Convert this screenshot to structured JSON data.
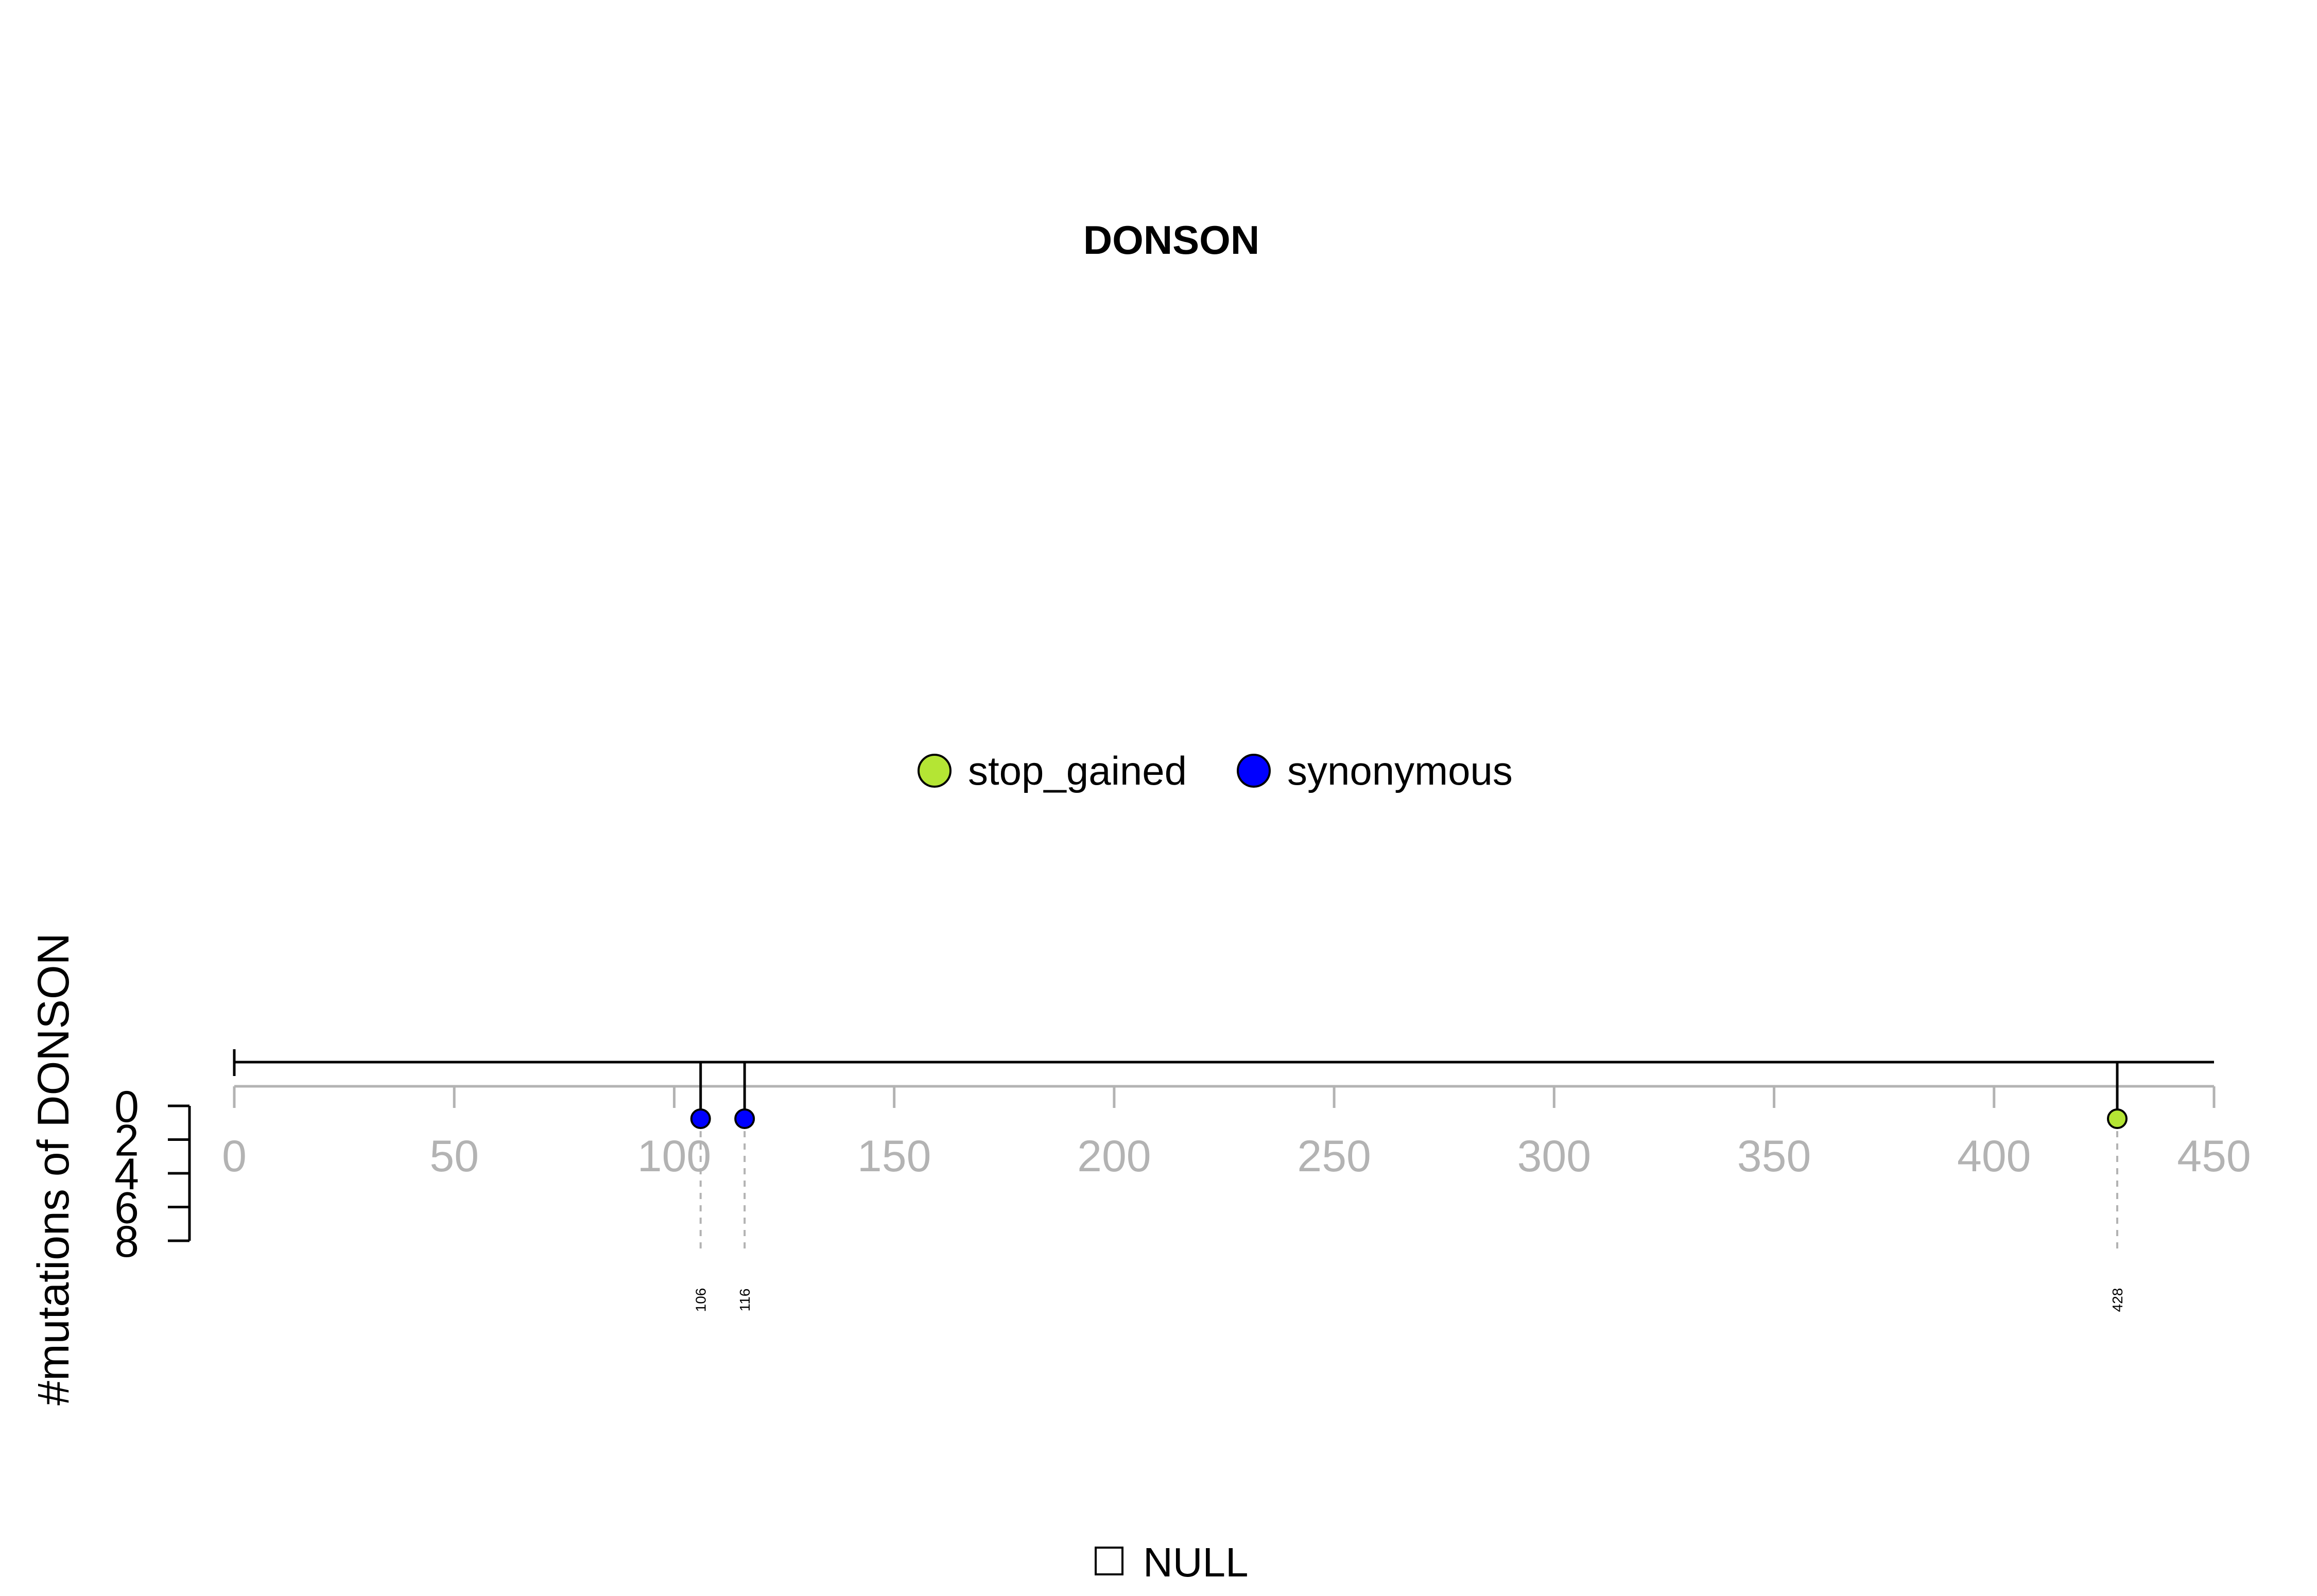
{
  "chart_data": {
    "type": "lollipop",
    "title": "DONSON",
    "ylabel": "#mutations of DONSON",
    "xlim": [
      0,
      450
    ],
    "x_ticks": [
      "0",
      "50",
      "100",
      "150",
      "200",
      "250",
      "300",
      "350",
      "400",
      "450"
    ],
    "y_ticks": [
      "0",
      "2",
      "4",
      "6",
      "8"
    ],
    "ylim": [
      0,
      8
    ],
    "legend": [
      {
        "name": "stop_gained",
        "color": "#b4e534"
      },
      {
        "name": "synonymous",
        "color": "#0000ff"
      }
    ],
    "legend_placement": "top-center",
    "mutations": [
      {
        "position": 106,
        "label": "106",
        "type": "synonymous",
        "count": 1
      },
      {
        "position": 116,
        "label": "116",
        "type": "synonymous",
        "count": 1
      },
      {
        "position": 428,
        "label": "428",
        "type": "stop_gained",
        "count": 1
      }
    ],
    "domain_legend": "NULL"
  },
  "colors": {
    "stop_gained": "#b4e534",
    "synonymous": "#0000ff",
    "axis_gray": "#b3b3b3",
    "ink": "#000000"
  }
}
